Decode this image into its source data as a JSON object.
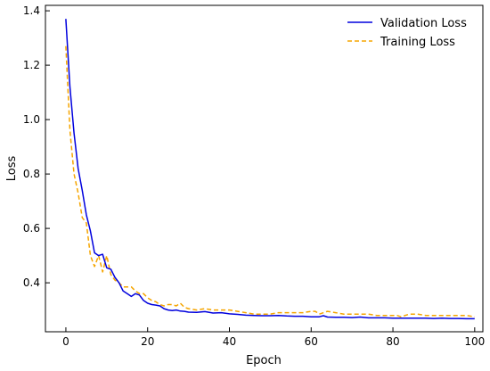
{
  "chart_data": {
    "type": "line",
    "title": "",
    "xlabel": "Epoch",
    "ylabel": "Loss",
    "xlim": [
      -5,
      102
    ],
    "ylim": [
      0.22,
      1.42
    ],
    "xticks": [
      0,
      20,
      40,
      60,
      80,
      100
    ],
    "yticks": [
      0.4,
      0.6,
      0.8,
      1.0,
      1.2,
      1.4
    ],
    "xtick_labels": [
      "0",
      "20",
      "40",
      "60",
      "80",
      "100"
    ],
    "ytick_labels": [
      "0.4",
      "0.6",
      "0.8",
      "1.0",
      "1.2",
      "1.4"
    ],
    "grid": false,
    "legend_position": "top-right",
    "series": [
      {
        "name": "Validation Loss",
        "color": "#0000dd",
        "style": "solid",
        "x": [
          0,
          1,
          2,
          3,
          4,
          5,
          6,
          7,
          8,
          9,
          10,
          11,
          12,
          13,
          14,
          15,
          16,
          17,
          18,
          19,
          20,
          21,
          22,
          23,
          24,
          25,
          26,
          27,
          28,
          29,
          30,
          32,
          34,
          36,
          38,
          40,
          42,
          44,
          46,
          48,
          50,
          52,
          54,
          56,
          58,
          60,
          62,
          63,
          64,
          66,
          68,
          70,
          72,
          74,
          76,
          78,
          80,
          82,
          84,
          86,
          88,
          90,
          92,
          94,
          96,
          98,
          100
        ],
        "y": [
          1.37,
          1.12,
          0.95,
          0.82,
          0.74,
          0.65,
          0.59,
          0.51,
          0.5,
          0.505,
          0.455,
          0.45,
          0.42,
          0.4,
          0.37,
          0.36,
          0.35,
          0.36,
          0.355,
          0.335,
          0.325,
          0.32,
          0.318,
          0.315,
          0.305,
          0.3,
          0.298,
          0.3,
          0.296,
          0.295,
          0.292,
          0.291,
          0.294,
          0.289,
          0.29,
          0.286,
          0.284,
          0.281,
          0.28,
          0.279,
          0.279,
          0.28,
          0.278,
          0.277,
          0.277,
          0.275,
          0.275,
          0.279,
          0.274,
          0.273,
          0.273,
          0.272,
          0.274,
          0.271,
          0.271,
          0.271,
          0.27,
          0.27,
          0.27,
          0.27,
          0.27,
          0.269,
          0.27,
          0.269,
          0.269,
          0.268,
          0.268
        ]
      },
      {
        "name": "Training Loss",
        "color": "#f5a500",
        "style": "dashed",
        "x": [
          0,
          1,
          2,
          3,
          4,
          5,
          6,
          7,
          8,
          9,
          10,
          11,
          12,
          13,
          14,
          15,
          16,
          17,
          18,
          19,
          20,
          21,
          22,
          23,
          24,
          25,
          26,
          27,
          28,
          29,
          30,
          32,
          34,
          36,
          38,
          40,
          42,
          44,
          46,
          48,
          50,
          52,
          54,
          56,
          58,
          60,
          61,
          62,
          64,
          66,
          68,
          70,
          72,
          74,
          76,
          78,
          80,
          81,
          82,
          84,
          86,
          88,
          90,
          92,
          94,
          96,
          98,
          100
        ],
        "y": [
          1.27,
          0.96,
          0.8,
          0.73,
          0.64,
          0.62,
          0.5,
          0.46,
          0.5,
          0.44,
          0.5,
          0.43,
          0.41,
          0.4,
          0.385,
          0.385,
          0.385,
          0.37,
          0.36,
          0.36,
          0.345,
          0.335,
          0.33,
          0.32,
          0.315,
          0.32,
          0.32,
          0.315,
          0.325,
          0.31,
          0.305,
          0.3,
          0.305,
          0.3,
          0.3,
          0.3,
          0.295,
          0.29,
          0.285,
          0.285,
          0.285,
          0.29,
          0.29,
          0.29,
          0.29,
          0.295,
          0.295,
          0.285,
          0.295,
          0.29,
          0.285,
          0.285,
          0.285,
          0.285,
          0.28,
          0.28,
          0.28,
          0.28,
          0.275,
          0.285,
          0.285,
          0.28,
          0.28,
          0.28,
          0.28,
          0.28,
          0.28,
          0.275
        ]
      }
    ]
  }
}
